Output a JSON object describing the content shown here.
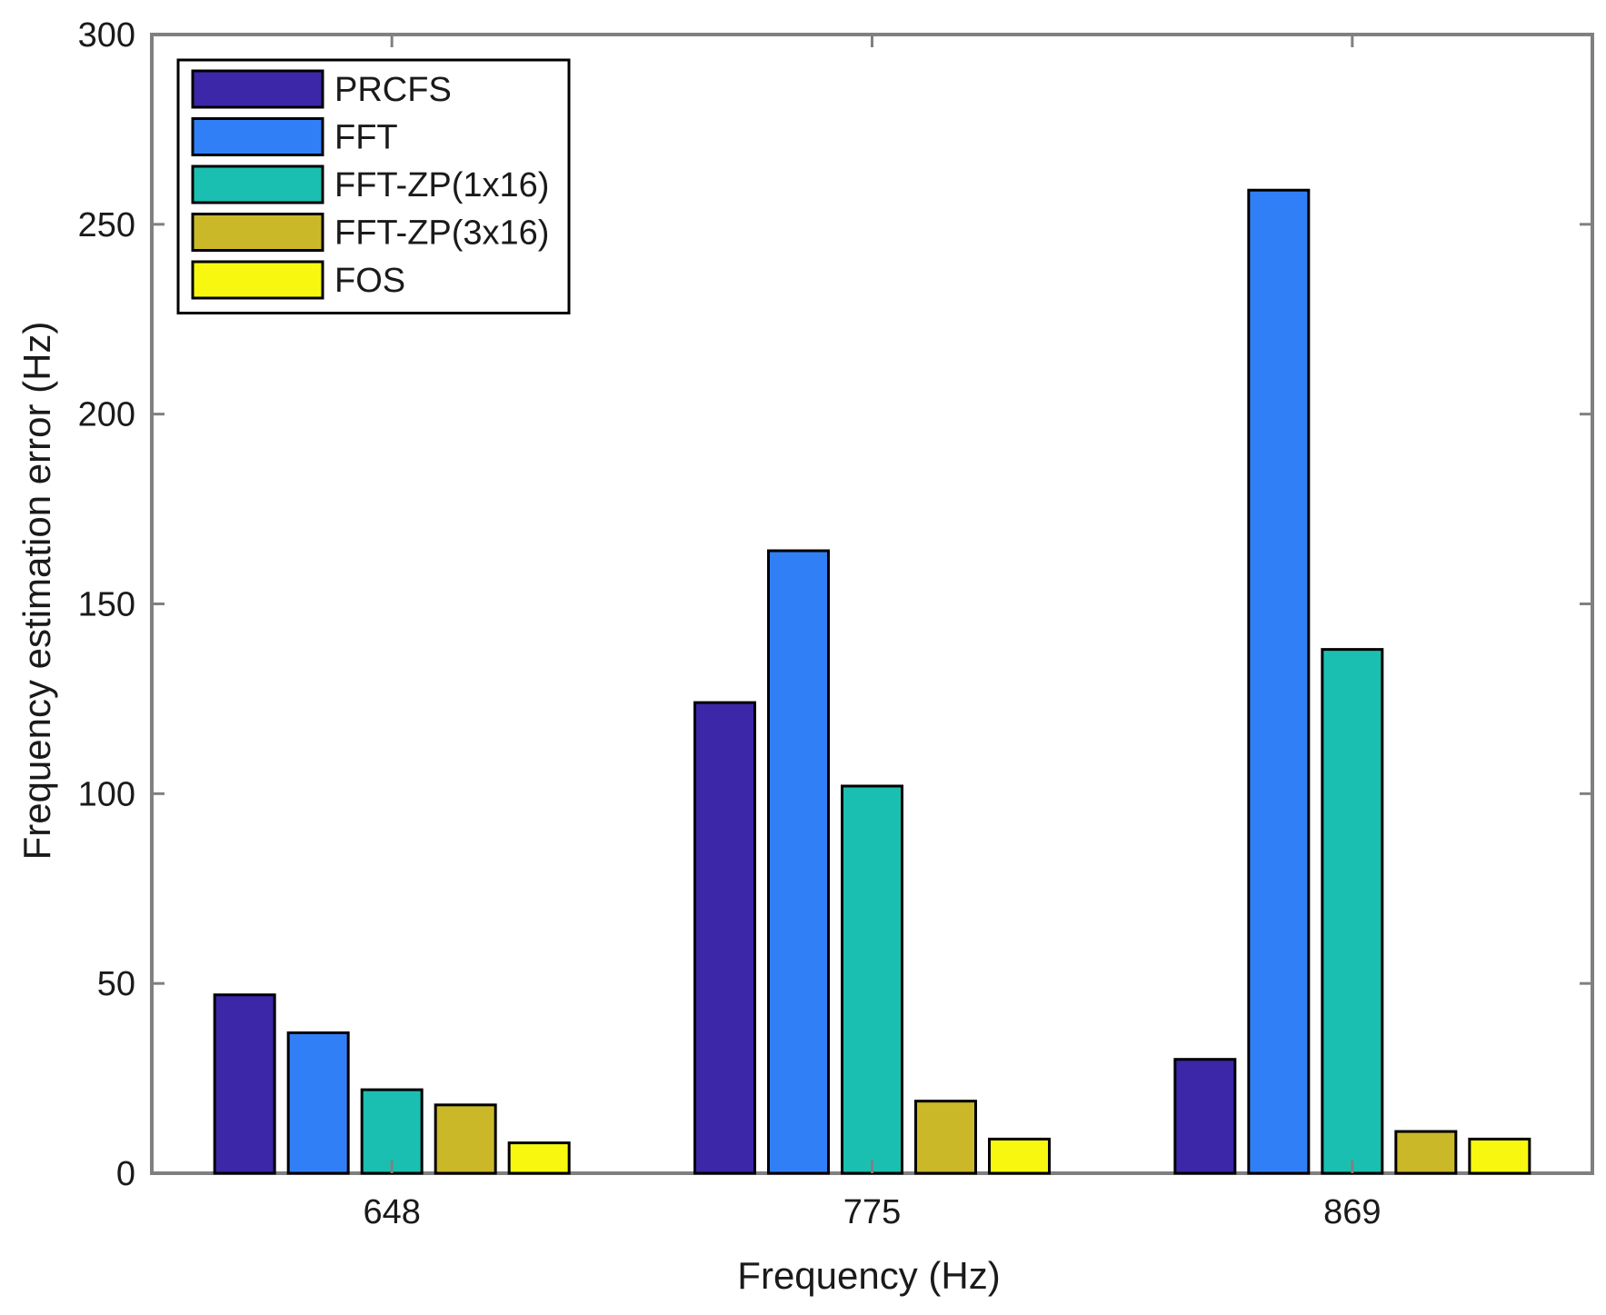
{
  "chart_data": {
    "type": "bar",
    "title": "",
    "xlabel": "Frequency (Hz)",
    "ylabel": "Frequency estimation error (Hz)",
    "categories": [
      "648",
      "775",
      "869"
    ],
    "ylim": [
      0,
      300
    ],
    "yticks": [
      0,
      50,
      100,
      150,
      200,
      250,
      300
    ],
    "grid": false,
    "legend_position": "top-left",
    "series": [
      {
        "name": "PRCFS",
        "color": "#3b27a8",
        "values": [
          47,
          124,
          30
        ]
      },
      {
        "name": "FFT",
        "color": "#317ff7",
        "values": [
          37,
          164,
          259
        ]
      },
      {
        "name": "FFT-ZP(1x16)",
        "color": "#1bbfb2",
        "values": [
          22,
          102,
          138
        ]
      },
      {
        "name": "FFT-ZP(3x16)",
        "color": "#cbb829",
        "values": [
          18,
          19,
          11
        ]
      },
      {
        "name": "FOS",
        "color": "#f8f710",
        "values": [
          8,
          9,
          9
        ]
      }
    ],
    "axis_color": "#808080",
    "bar_outline_color": "#000000"
  }
}
